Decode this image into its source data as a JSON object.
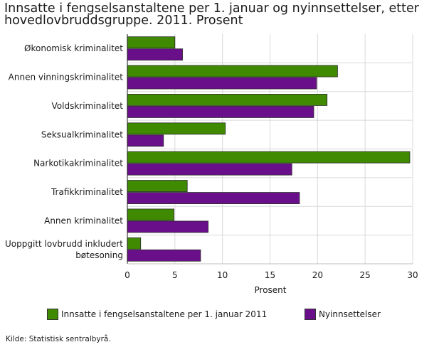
{
  "chart_data": {
    "type": "bar",
    "orientation": "horizontal",
    "title": "Innsatte i fengselsanstaltene per 1. januar og nyinnsettelser, etter\nhovedlovbruddsgruppe. 2011. Prosent",
    "xlabel": "Prosent",
    "ylabel": "",
    "xlim": [
      0,
      30
    ],
    "x_ticks": [
      "0",
      "5",
      "10",
      "15",
      "20",
      "25",
      "30"
    ],
    "grid": true,
    "legend_position": "bottom",
    "categories": [
      "Økonomisk kriminalitet",
      "Annen vinningskriminalitet",
      "Voldskriminalitet",
      "Seksualkriminalitet",
      "Narkotikakriminalitet",
      "Trafikkriminalitet",
      "Annen kriminalitet",
      "Uoppgitt lovbrudd inkludert\nbøtesoning"
    ],
    "series": [
      {
        "name": "Innsatte i fengselsanstaltene per 1. januar 2011",
        "color": "#3f8a00",
        "values": [
          5.0,
          22.1,
          21.0,
          10.3,
          29.7,
          6.3,
          4.9,
          1.4
        ]
      },
      {
        "name": "Nyinnsettelser",
        "color": "#6a0f8a",
        "values": [
          5.8,
          19.9,
          19.6,
          3.8,
          17.3,
          18.1,
          8.5,
          7.7
        ]
      }
    ],
    "source": "Kilde: Statistisk sentralbyrå."
  }
}
